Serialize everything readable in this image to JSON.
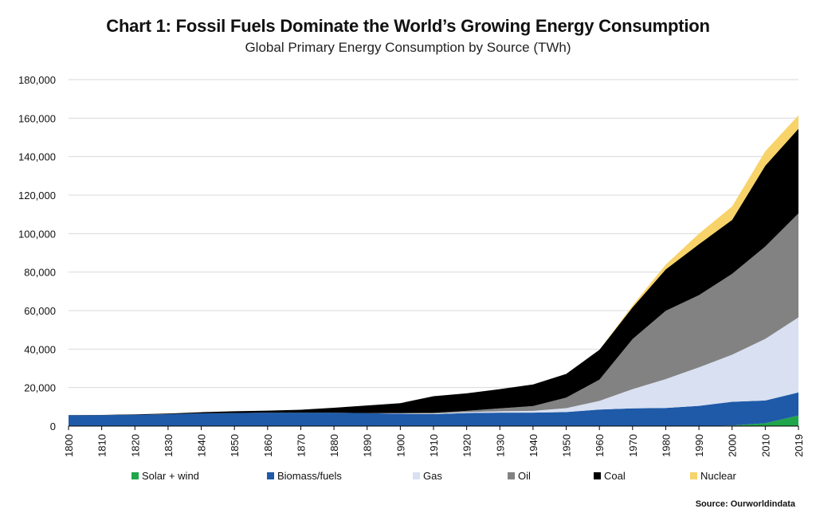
{
  "chart_data": {
    "type": "area",
    "stacked": true,
    "title": "Chart 1: Fossil Fuels Dominate the World’s Growing Energy Consumption",
    "subtitle": "Global Primary Energy Consumption by Source (TWh)",
    "source": "Source: Ourworldindata",
    "x": [
      1800,
      1810,
      1820,
      1830,
      1840,
      1850,
      1860,
      1870,
      1880,
      1890,
      1900,
      1910,
      1920,
      1930,
      1940,
      1950,
      1960,
      1970,
      1980,
      1990,
      2000,
      2010,
      2019
    ],
    "ylim": [
      0,
      180000
    ],
    "yticks": [
      0,
      20000,
      40000,
      60000,
      80000,
      100000,
      120000,
      140000,
      160000,
      180000
    ],
    "ytick_labels": [
      "0",
      "20,000",
      "40,000",
      "60,000",
      "80,000",
      "100,000",
      "120,000",
      "140,000",
      "160,000",
      "180,000"
    ],
    "grid": "horizontal",
    "legend_position": "bottom",
    "series": [
      {
        "name": "Solar + wind",
        "color": "#1fa64a",
        "values": [
          0,
          0,
          0,
          0,
          0,
          0,
          0,
          0,
          0,
          0,
          0,
          0,
          0,
          0,
          0,
          0,
          0,
          0,
          0,
          0,
          300,
          1500,
          5500
        ]
      },
      {
        "name": "Biomass/fuels",
        "color": "#1f5aa8",
        "values": [
          5600,
          5700,
          5900,
          6200,
          6600,
          6800,
          7000,
          7000,
          7000,
          6700,
          6400,
          6200,
          6800,
          7000,
          7000,
          7300,
          8600,
          9200,
          9400,
          10500,
          12300,
          11800,
          12000
        ]
      },
      {
        "name": "Gas",
        "color": "#d8e0f1",
        "values": [
          0,
          0,
          0,
          0,
          0,
          0,
          0,
          0,
          0,
          0,
          200,
          300,
          500,
          700,
          900,
          2000,
          4500,
          10000,
          15000,
          20000,
          24500,
          32000,
          39000
        ]
      },
      {
        "name": "Oil",
        "color": "#828282",
        "values": [
          0,
          0,
          0,
          0,
          0,
          0,
          0,
          0,
          0,
          0,
          200,
          400,
          600,
          1500,
          2500,
          5500,
          11000,
          26000,
          35500,
          37500,
          42000,
          48000,
          54000
        ]
      },
      {
        "name": "Coal",
        "color": "#000000",
        "values": [
          100,
          100,
          200,
          300,
          600,
          900,
          1000,
          1500,
          2500,
          4000,
          5100,
          8600,
          9100,
          10000,
          11200,
          12300,
          15500,
          16500,
          21500,
          26500,
          28000,
          42000,
          44000
        ]
      },
      {
        "name": "Nuclear",
        "color": "#f7d36a",
        "values": [
          0,
          0,
          0,
          0,
          0,
          0,
          0,
          0,
          0,
          0,
          0,
          0,
          0,
          0,
          0,
          0,
          0,
          1000,
          2500,
          5500,
          7000,
          7500,
          7000
        ]
      }
    ]
  }
}
